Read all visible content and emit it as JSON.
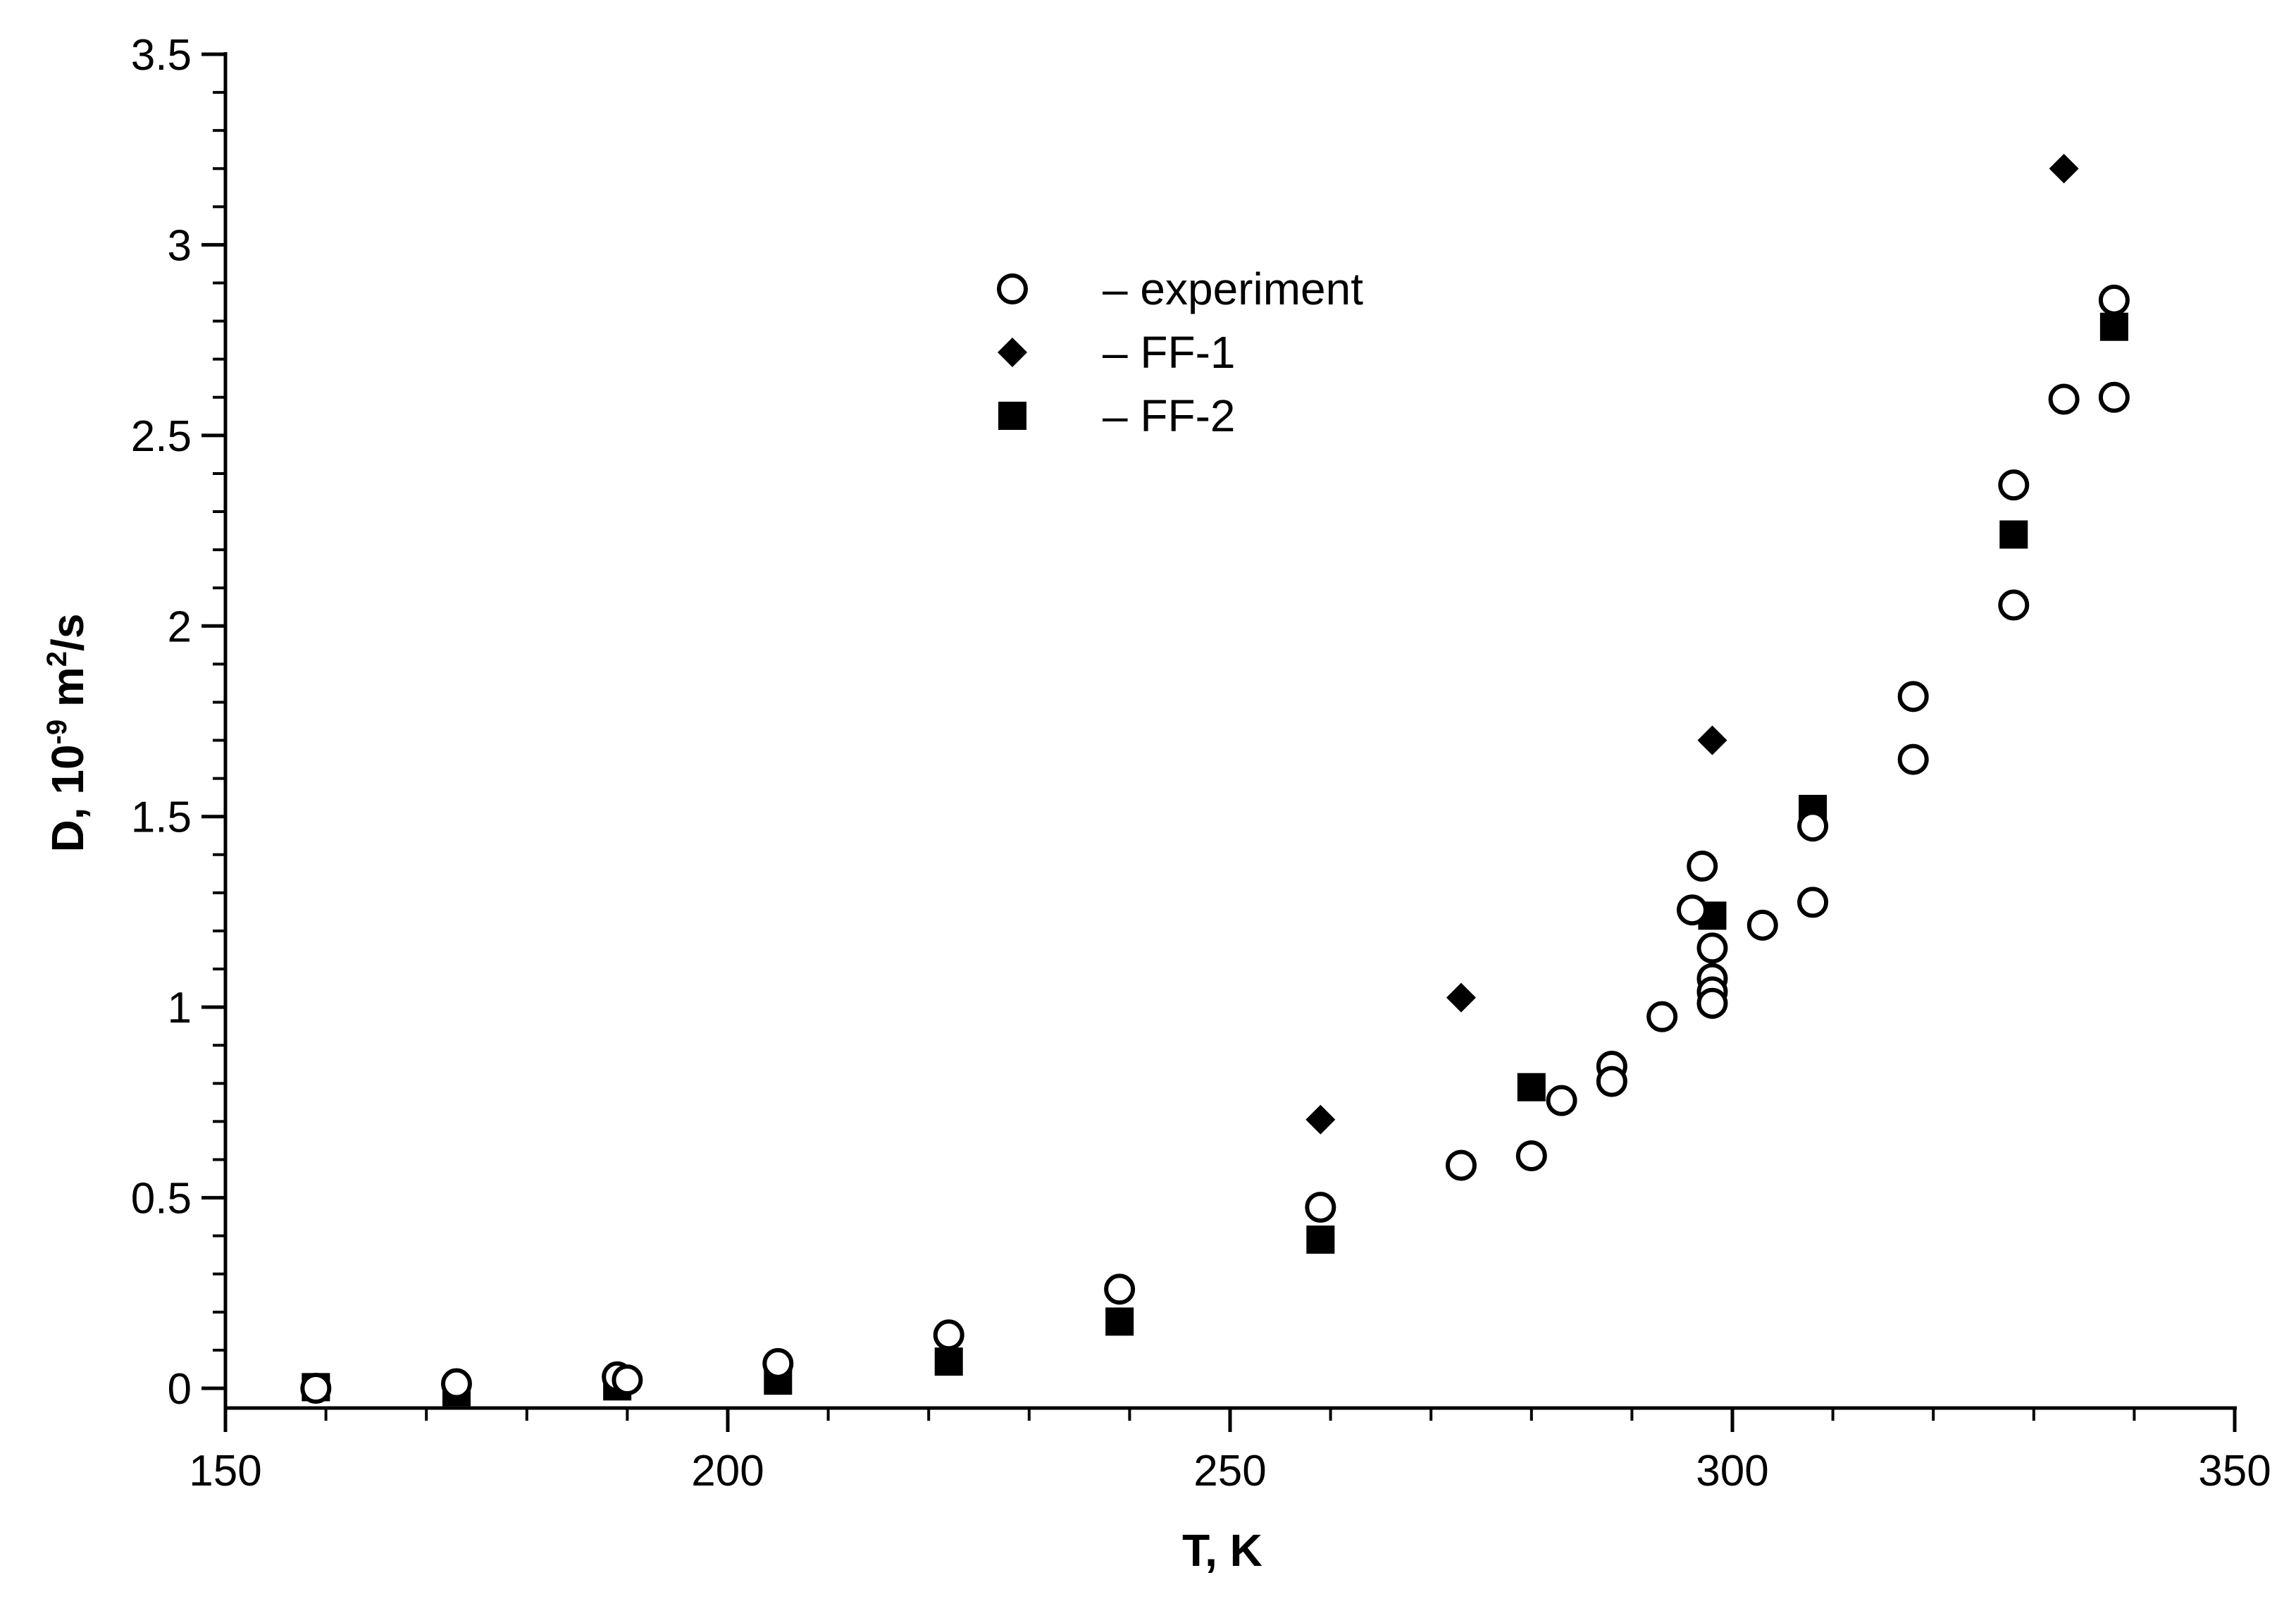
{
  "chart_data": {
    "type": "scatter",
    "title": "",
    "xlabel": "T, K",
    "ylabel": {
      "base": "D, 10",
      "exp": "-9",
      "unit": " m",
      "unit_exp": "2",
      "tail": "/s"
    },
    "xlim": [
      150,
      350
    ],
    "ylim": [
      -0.05,
      3.5
    ],
    "xticks": [
      150,
      200,
      250,
      300,
      350
    ],
    "xtick_labels": [
      "150",
      "200",
      "250",
      "300",
      "350"
    ],
    "yticks": [
      0,
      0.5,
      1,
      1.5,
      2,
      2.5,
      3,
      3.5
    ],
    "ytick_labels": [
      "0",
      "0.5",
      "1",
      "1.5",
      "2",
      "2.5",
      "3",
      "3.5"
    ],
    "grid": false,
    "legend_position": "top-center",
    "series": [
      {
        "name": "–  experiment",
        "marker": "open-circle",
        "color": "#000000",
        "points": [
          [
            159,
            0.0
          ],
          [
            173,
            0.012
          ],
          [
            189,
            0.03
          ],
          [
            190,
            0.022
          ],
          [
            205,
            0.065
          ],
          [
            222,
            0.14
          ],
          [
            239,
            0.26
          ],
          [
            259,
            0.475
          ],
          [
            273,
            0.585
          ],
          [
            280,
            0.61
          ],
          [
            283,
            0.755
          ],
          [
            288,
            0.845
          ],
          [
            288,
            0.805
          ],
          [
            293,
            0.975
          ],
          [
            296,
            1.255
          ],
          [
            297,
            1.37
          ],
          [
            298,
            1.155
          ],
          [
            298,
            1.075
          ],
          [
            298,
            1.04
          ],
          [
            298,
            1.01
          ],
          [
            303,
            1.215
          ],
          [
            308,
            1.475
          ],
          [
            308,
            1.275
          ],
          [
            318,
            1.815
          ],
          [
            318,
            1.65
          ],
          [
            328,
            2.37
          ],
          [
            328,
            2.055
          ],
          [
            333,
            2.595
          ],
          [
            338,
            2.855
          ],
          [
            338,
            2.6
          ]
        ]
      },
      {
        "name": "– FF-1",
        "marker": "filled-diamond",
        "color": "#000000",
        "points": [
          [
            259,
            0.705
          ],
          [
            273,
            1.025
          ],
          [
            298,
            1.7
          ],
          [
            333,
            3.2
          ]
        ]
      },
      {
        "name": "– FF-2",
        "marker": "filled-square",
        "color": "#000000",
        "points": [
          [
            159,
            0.003
          ],
          [
            173,
            -0.01
          ],
          [
            189,
            0.005
          ],
          [
            205,
            0.02
          ],
          [
            222,
            0.07
          ],
          [
            239,
            0.175
          ],
          [
            259,
            0.39
          ],
          [
            280,
            0.79
          ],
          [
            298,
            1.24
          ],
          [
            308,
            1.52
          ],
          [
            328,
            2.24
          ],
          [
            338,
            2.785
          ]
        ]
      }
    ]
  }
}
